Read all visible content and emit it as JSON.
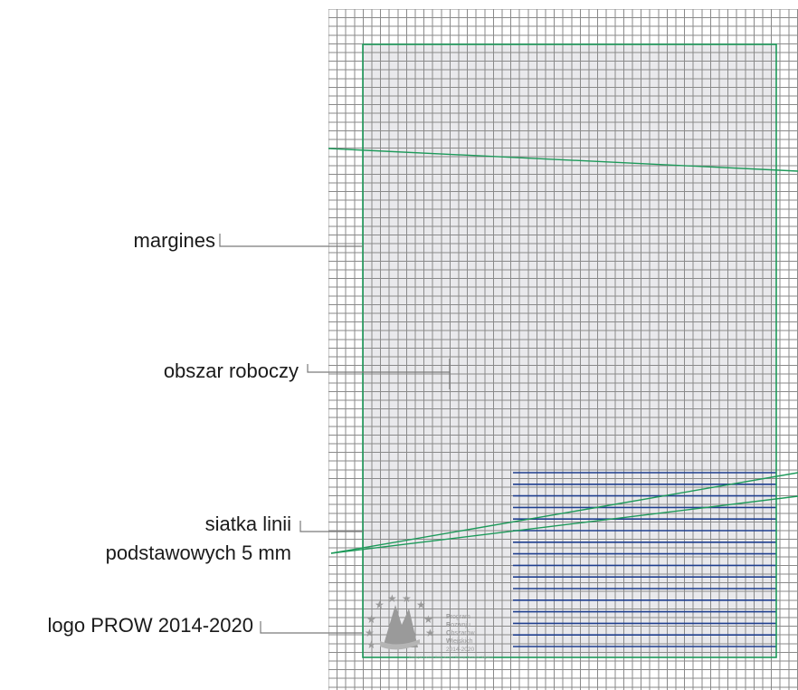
{
  "labels": {
    "margins": "margines",
    "work_area": "obszar roboczy",
    "baseline_grid_line1": "siatka linii",
    "baseline_grid_line2": "podstawowych 5 mm",
    "logo": "logo PROW 2014-2020"
  },
  "logo": {
    "icon": "prow-stars-emblem-icon",
    "words": [
      {
        "initial": "P",
        "rest": "rogram"
      },
      {
        "initial": "R",
        "rest": "ozwoju"
      },
      {
        "initial": "O",
        "rest": "bszarów"
      },
      {
        "initial": "W",
        "rest": "iejskich"
      }
    ],
    "years": "2014-2020",
    "tagline": "Europejski Fundusz Rolny na rzecz Rozwoju Obszarów Wiejskich"
  },
  "colors": {
    "grid_line": "#8a8a8a",
    "work_area_fill": "#e9e9ec",
    "margin_line": "#1d9a5a",
    "baseline_grid": "#1f3f8f",
    "logo_gray": "#9a9a9a",
    "leader_line": "#7a7a7a"
  }
}
